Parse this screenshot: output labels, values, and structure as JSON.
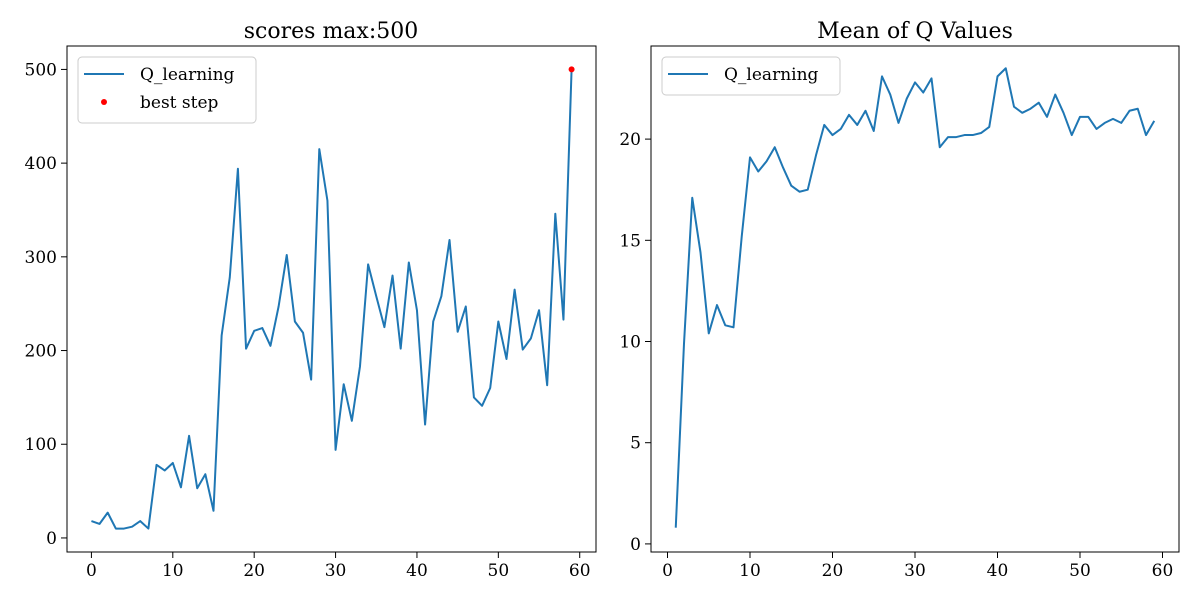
{
  "chart_data": [
    {
      "type": "line",
      "title": "scores max:500",
      "xlabel": "",
      "ylabel": "",
      "xlim": [
        -3,
        62
      ],
      "ylim": [
        -15,
        525
      ],
      "xticks": [
        0,
        10,
        20,
        30,
        40,
        50,
        60
      ],
      "yticks": [
        0,
        100,
        200,
        300,
        400,
        500
      ],
      "legend": "upper-left",
      "series": [
        {
          "name": "Q_learning",
          "color": "#1f77b4",
          "x": [
            0,
            1,
            2,
            3,
            4,
            5,
            6,
            7,
            8,
            9,
            10,
            11,
            12,
            13,
            14,
            15,
            16,
            17,
            18,
            19,
            20,
            21,
            22,
            23,
            24,
            25,
            26,
            27,
            28,
            29,
            30,
            31,
            32,
            33,
            34,
            35,
            36,
            37,
            38,
            39,
            40,
            41,
            42,
            43,
            44,
            45,
            46,
            47,
            48,
            49,
            50,
            51,
            52,
            53,
            54,
            55,
            56,
            57,
            58,
            59
          ],
          "values": [
            18,
            15,
            27,
            10,
            10,
            12,
            18,
            10,
            78,
            72,
            80,
            54,
            109,
            53,
            68,
            29,
            216,
            278,
            394,
            202,
            221,
            224,
            205,
            247,
            302,
            231,
            219,
            169,
            415,
            360,
            94,
            164,
            125,
            183,
            292,
            258,
            225,
            280,
            202,
            294,
            243,
            121,
            231,
            258,
            318,
            220,
            247,
            150,
            141,
            160,
            231,
            191,
            265,
            201,
            213,
            243,
            163,
            346,
            233,
            500
          ]
        },
        {
          "name": "best step",
          "color": "#ff0000",
          "marker": "dot",
          "x": [
            59
          ],
          "values": [
            500
          ]
        }
      ]
    },
    {
      "type": "line",
      "title": "Mean of Q Values",
      "xlabel": "",
      "ylabel": "",
      "xlim": [
        -2,
        62
      ],
      "ylim": [
        -0.4,
        24.6
      ],
      "xticks": [
        0,
        10,
        20,
        30,
        40,
        50,
        60
      ],
      "yticks": [
        0,
        5,
        10,
        15,
        20
      ],
      "legend": "upper-left",
      "series": [
        {
          "name": "Q_learning",
          "color": "#1f77b4",
          "x": [
            1,
            2,
            3,
            4,
            5,
            6,
            7,
            8,
            9,
            10,
            11,
            12,
            13,
            14,
            15,
            16,
            17,
            18,
            19,
            20,
            21,
            22,
            23,
            24,
            25,
            26,
            27,
            28,
            29,
            30,
            31,
            32,
            33,
            34,
            35,
            36,
            37,
            38,
            39,
            40,
            41,
            42,
            43,
            44,
            45,
            46,
            47,
            48,
            49,
            50,
            51,
            52,
            53,
            54,
            55,
            56,
            57,
            58,
            59
          ],
          "values": [
            0.8,
            9.9,
            17.1,
            14.4,
            10.4,
            11.8,
            10.8,
            10.7,
            15.2,
            19.1,
            18.4,
            18.9,
            19.6,
            18.6,
            17.7,
            17.4,
            17.5,
            19.2,
            20.7,
            20.2,
            20.5,
            21.2,
            20.7,
            21.4,
            20.4,
            23.1,
            22.2,
            20.8,
            22.0,
            22.8,
            22.3,
            23.0,
            19.6,
            20.1,
            20.1,
            20.2,
            20.2,
            20.3,
            20.6,
            23.1,
            23.5,
            21.6,
            21.3,
            21.5,
            21.8,
            21.1,
            22.2,
            21.3,
            20.2,
            21.1,
            21.1,
            20.5,
            20.8,
            21.0,
            20.8,
            21.4,
            21.5,
            20.2,
            20.9
          ]
        }
      ]
    }
  ]
}
